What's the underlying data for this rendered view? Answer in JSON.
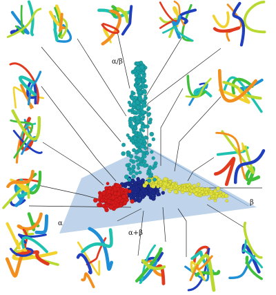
{
  "labels": {
    "alpha_beta": "α/β",
    "beta": "β",
    "alpha": "α",
    "alpha_plus_beta": "α+β"
  },
  "colors": {
    "alpha_cluster": "#d61a1a",
    "beta_cluster": "#dfe03a",
    "alpha_beta_cluster": "#19a3a8",
    "alpha_plus_beta_cluster": "#1c2a8c",
    "plane": "#a9c6e3",
    "leader_line": "#222222"
  },
  "structures": [
    {
      "name": "structure-thumbnail-1",
      "category": "alpha_beta"
    },
    {
      "name": "structure-thumbnail-2",
      "category": "alpha_beta"
    },
    {
      "name": "structure-thumbnail-3",
      "category": "alpha_beta"
    },
    {
      "name": "structure-thumbnail-4",
      "category": "alpha_beta"
    },
    {
      "name": "structure-thumbnail-5",
      "category": "alpha_beta"
    },
    {
      "name": "structure-thumbnail-6",
      "category": "alpha"
    },
    {
      "name": "structure-thumbnail-7",
      "category": "alpha"
    },
    {
      "name": "structure-thumbnail-8",
      "category": "alpha"
    },
    {
      "name": "structure-thumbnail-9",
      "category": "beta"
    },
    {
      "name": "structure-thumbnail-10",
      "category": "beta"
    },
    {
      "name": "structure-thumbnail-11",
      "category": "beta"
    },
    {
      "name": "structure-thumbnail-12",
      "category": "alpha_plus_beta"
    },
    {
      "name": "structure-thumbnail-13",
      "category": "alpha_plus_beta"
    },
    {
      "name": "structure-thumbnail-14",
      "category": "beta"
    },
    {
      "name": "structure-thumbnail-15",
      "category": "beta"
    },
    {
      "name": "structure-thumbnail-16",
      "category": "beta"
    },
    {
      "name": "structure-thumbnail-17",
      "category": "alpha_plus_beta"
    }
  ]
}
